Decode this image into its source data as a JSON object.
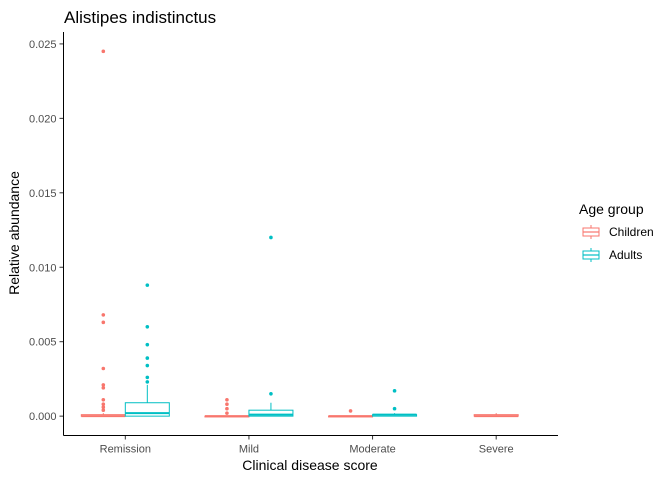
{
  "chart_data": {
    "type": "boxplot",
    "title": "Alistipes indistinctus",
    "xlabel": "Clinical disease score",
    "ylabel": "Relative abundance",
    "ylim": [
      -0.0013,
      0.0258
    ],
    "yticks": [
      "0.000",
      "0.005",
      "0.010",
      "0.015",
      "0.020",
      "0.025"
    ],
    "categories": [
      "Remission",
      "Mild",
      "Moderate",
      "Severe"
    ],
    "legend": {
      "title": "Age group",
      "position": "right"
    },
    "grid": false,
    "series": [
      {
        "name": "Children",
        "color": "#F8766D",
        "boxes": [
          {
            "category": "Remission",
            "q1": 0.0,
            "median": 0.0,
            "q3": 0.0001,
            "whisker_low": 0.0,
            "whisker_high": 0.0002,
            "outliers": [
              0.0245,
              0.0068,
              0.0063,
              0.0032,
              0.0021,
              0.0019,
              0.0011,
              0.0008,
              0.0006,
              0.0004
            ]
          },
          {
            "category": "Mild",
            "q1": 0.0,
            "median": 0.0,
            "q3": 0.0,
            "whisker_low": 0.0,
            "whisker_high": 0.0,
            "outliers": [
              0.0011,
              0.0008,
              0.0005,
              0.0002
            ]
          },
          {
            "category": "Moderate",
            "q1": 0.0,
            "median": 0.0,
            "q3": 0.0,
            "whisker_low": 0.0,
            "whisker_high": 0.0,
            "outliers": [
              0.00035
            ]
          },
          {
            "category": "Severe",
            "q1": 0.0,
            "median": 0.0,
            "q3": 0.0001,
            "whisker_low": 0.0,
            "whisker_high": 0.0002,
            "outliers": []
          }
        ]
      },
      {
        "name": "Adults",
        "color": "#00BFC4",
        "boxes": [
          {
            "category": "Remission",
            "q1": 0.0,
            "median": 0.0002,
            "q3": 0.0009,
            "whisker_low": 0.0,
            "whisker_high": 0.0021,
            "outliers": [
              0.0088,
              0.006,
              0.0048,
              0.0039,
              0.0034,
              0.0026,
              0.0023
            ]
          },
          {
            "category": "Mild",
            "q1": 0.0,
            "median": 0.0001,
            "q3": 0.0004,
            "whisker_low": 0.0,
            "whisker_high": 0.0009,
            "outliers": [
              0.012,
              0.0015
            ]
          },
          {
            "category": "Moderate",
            "q1": 0.0,
            "median": 0.0001,
            "q3": 0.0001,
            "whisker_low": 0.0,
            "whisker_high": 0.0002,
            "outliers": [
              0.0017,
              0.0005
            ]
          }
        ]
      }
    ]
  }
}
